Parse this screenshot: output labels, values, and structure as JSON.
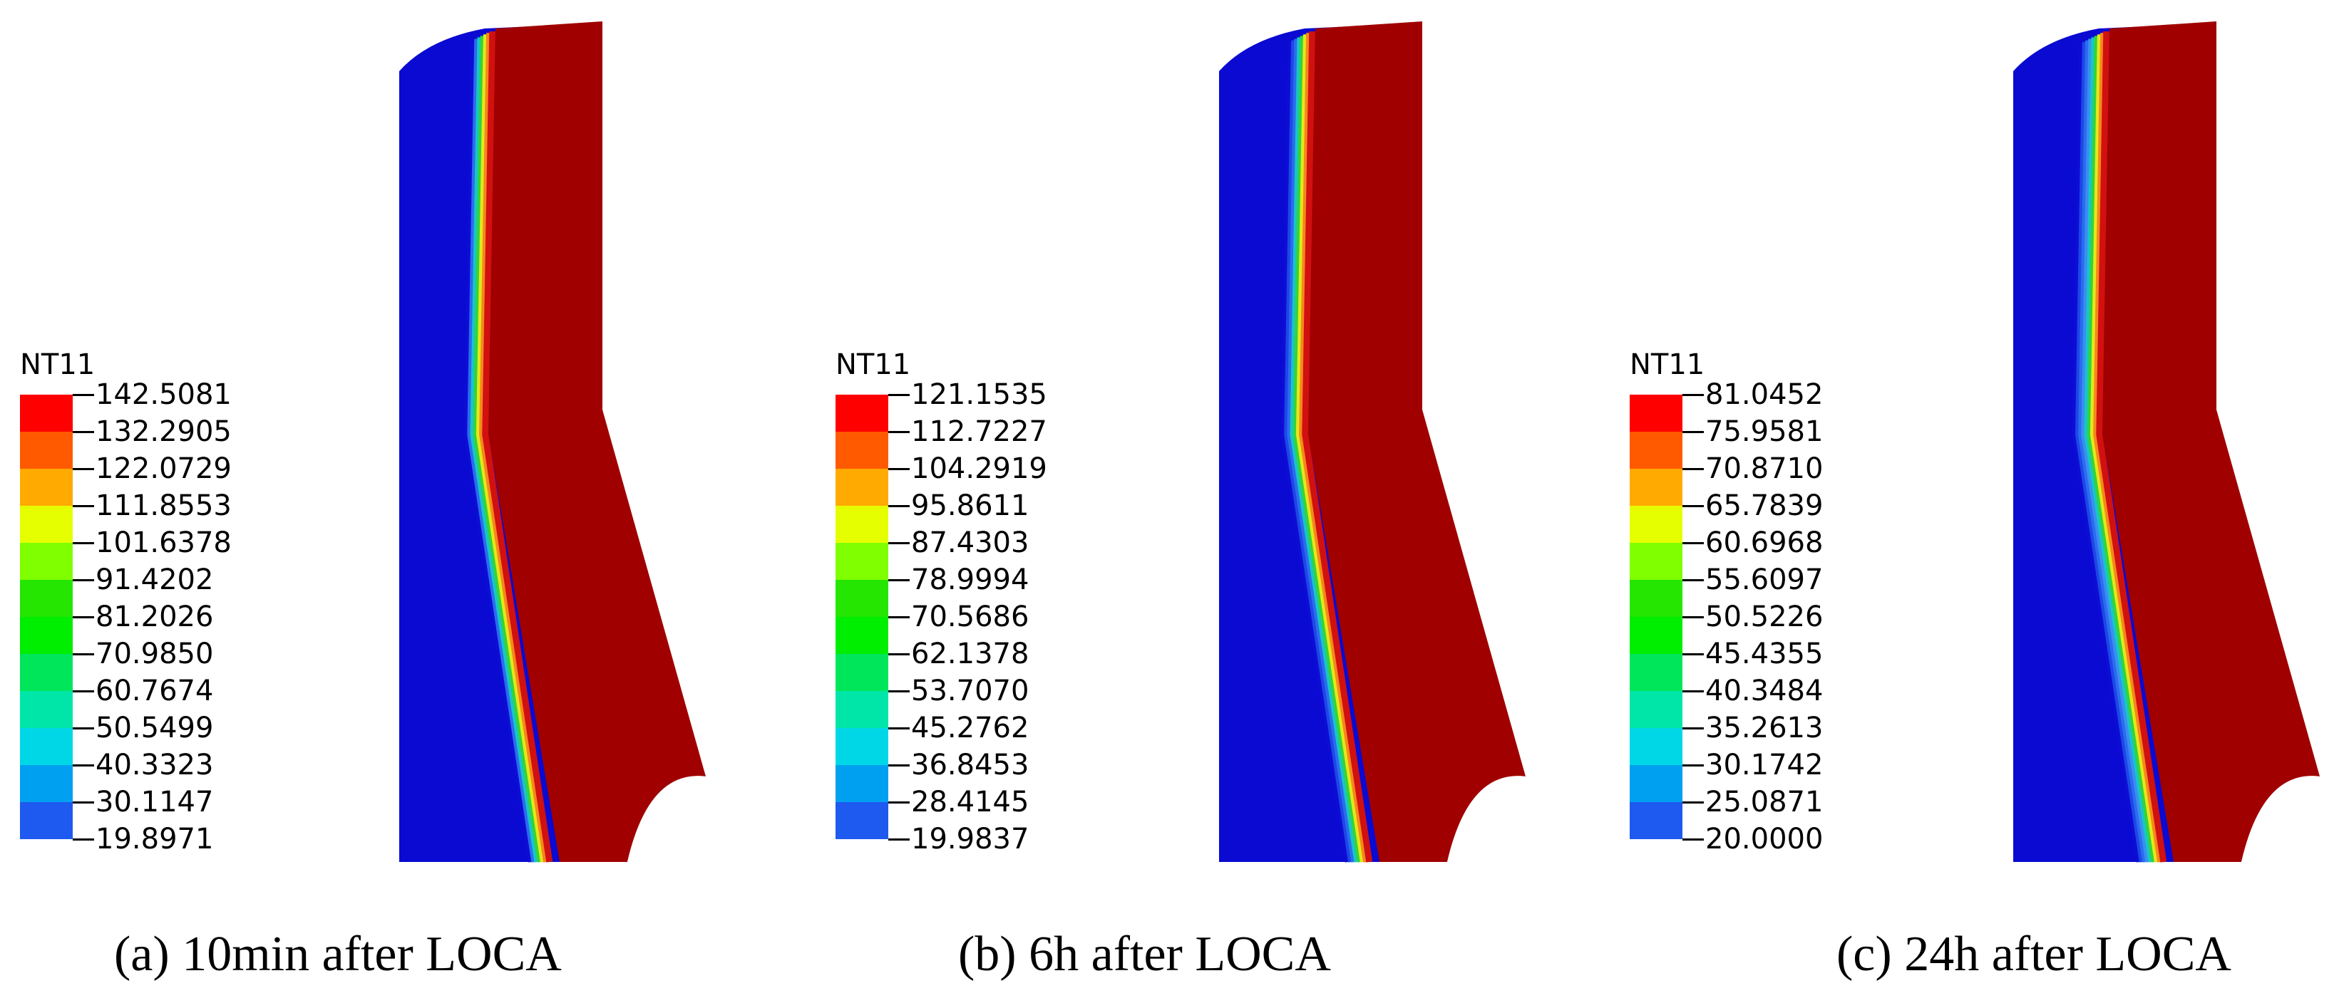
{
  "panels": [
    {
      "legend_title": "NT11",
      "ticks": [
        "142.5081",
        "132.2905",
        "122.0729",
        "111.8553",
        "101.6378",
        "91.4202",
        "81.2026",
        "70.9850",
        "60.7674",
        "50.5499",
        "40.3323",
        "30.1147",
        "19.8971"
      ],
      "caption": "(a) 10min after LOCA",
      "gradient_bands": [
        "#0d0dd6",
        "#2a6cf0",
        "#17c6c6",
        "#31d43c",
        "#e3e81a",
        "#f5891a",
        "#d11010"
      ]
    },
    {
      "legend_title": "NT11",
      "ticks": [
        "121.1535",
        "112.7227",
        "104.2919",
        "95.8611",
        "87.4303",
        "78.9994",
        "70.5686",
        "62.1378",
        "53.7070",
        "45.2762",
        "36.8453",
        "28.4145",
        "19.9837"
      ],
      "caption": "(b) 6h after LOCA",
      "gradient_bands": [
        "#0d0dd6",
        "#1d47e6",
        "#2a6cf0",
        "#17c6c6",
        "#31d43c",
        "#e3e81a",
        "#f5891a",
        "#d11010"
      ]
    },
    {
      "legend_title": "NT11",
      "ticks": [
        "81.0452",
        "75.9581",
        "70.8710",
        "65.7839",
        "60.6968",
        "55.6097",
        "50.5226",
        "45.4355",
        "40.3484",
        "35.2613",
        "30.1742",
        "25.0871",
        "20.0000"
      ],
      "caption": "(c) 24h after LOCA",
      "gradient_bands": [
        "#0d0dd6",
        "#1d47e6",
        "#2a6cf0",
        "#3a8ef3",
        "#17c6c6",
        "#31d43c",
        "#e3e81a",
        "#f5891a",
        "#d11010"
      ]
    }
  ],
  "colormap": [
    "#ff0000",
    "#ff5a00",
    "#ffaa00",
    "#e6ff00",
    "#7fff00",
    "#24e600",
    "#00ee00",
    "#00e65a",
    "#00e6a8",
    "#00d7e6",
    "#00a0f0",
    "#1e5af0",
    "#0000ff"
  ],
  "solid_colors": {
    "hot": "#a00000",
    "cold": "#0a0ad2"
  }
}
